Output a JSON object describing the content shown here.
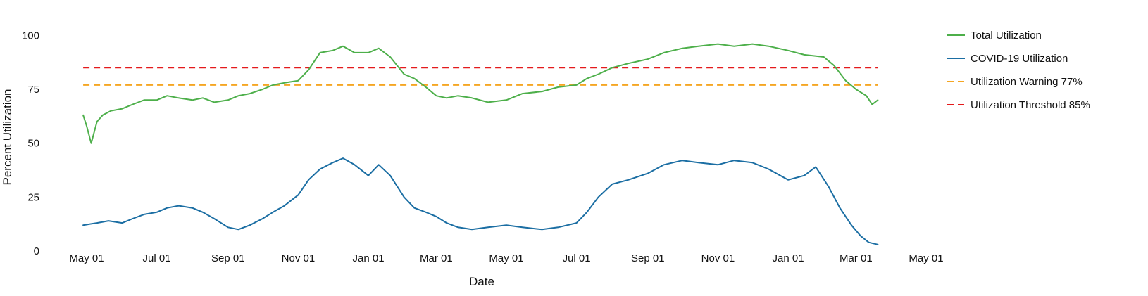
{
  "chart_data": {
    "type": "line",
    "title": "",
    "xlabel": "Date",
    "ylabel": "Percent Utilization",
    "ylim": [
      0,
      105
    ],
    "yticks": [
      0,
      25,
      50,
      75,
      100
    ],
    "xlim": [
      "2020-04-20",
      "2022-05-01"
    ],
    "xticks": [
      {
        "date": "2020-05-01",
        "label": "May 01"
      },
      {
        "date": "2020-07-01",
        "label": "Jul 01"
      },
      {
        "date": "2020-09-01",
        "label": "Sep 01"
      },
      {
        "date": "2020-11-01",
        "label": "Nov 01"
      },
      {
        "date": "2021-01-01",
        "label": "Jan 01"
      },
      {
        "date": "2021-03-01",
        "label": "Mar 01"
      },
      {
        "date": "2021-05-01",
        "label": "May 01"
      },
      {
        "date": "2021-07-01",
        "label": "Jul 01"
      },
      {
        "date": "2021-09-01",
        "label": "Sep 01"
      },
      {
        "date": "2021-11-01",
        "label": "Nov 01"
      },
      {
        "date": "2022-01-01",
        "label": "Jan 01"
      },
      {
        "date": "2022-03-01",
        "label": "Mar 01"
      },
      {
        "date": "2022-05-01",
        "label": "May 01"
      }
    ],
    "grid": false,
    "legend_position": "right",
    "series": [
      {
        "name": "Total Utilization",
        "color": "#4daf4a",
        "style": "solid",
        "x": [
          "2020-04-28",
          "2020-05-01",
          "2020-05-05",
          "2020-05-10",
          "2020-05-15",
          "2020-05-22",
          "2020-06-01",
          "2020-06-10",
          "2020-06-20",
          "2020-07-01",
          "2020-07-10",
          "2020-07-20",
          "2020-08-01",
          "2020-08-10",
          "2020-08-20",
          "2020-09-01",
          "2020-09-10",
          "2020-09-20",
          "2020-10-01",
          "2020-10-10",
          "2020-10-20",
          "2020-11-01",
          "2020-11-10",
          "2020-11-20",
          "2020-12-01",
          "2020-12-10",
          "2020-12-20",
          "2021-01-01",
          "2021-01-10",
          "2021-01-20",
          "2021-02-01",
          "2021-02-10",
          "2021-02-20",
          "2021-03-01",
          "2021-03-10",
          "2021-03-20",
          "2021-04-01",
          "2021-04-15",
          "2021-05-01",
          "2021-05-15",
          "2021-06-01",
          "2021-06-15",
          "2021-07-01",
          "2021-07-10",
          "2021-07-20",
          "2021-08-01",
          "2021-08-15",
          "2021-09-01",
          "2021-09-15",
          "2021-10-01",
          "2021-10-15",
          "2021-11-01",
          "2021-11-15",
          "2021-12-01",
          "2021-12-15",
          "2022-01-01",
          "2022-01-15",
          "2022-02-01",
          "2022-02-10",
          "2022-02-20",
          "2022-03-01",
          "2022-03-10",
          "2022-03-15",
          "2022-03-20"
        ],
        "values": [
          63,
          58,
          50,
          60,
          63,
          65,
          66,
          68,
          70,
          70,
          72,
          71,
          70,
          71,
          69,
          70,
          72,
          73,
          75,
          77,
          78,
          79,
          84,
          92,
          93,
          95,
          92,
          92,
          94,
          90,
          82,
          80,
          76,
          72,
          71,
          72,
          71,
          69,
          70,
          73,
          74,
          76,
          77,
          80,
          82,
          85,
          87,
          89,
          92,
          94,
          95,
          96,
          95,
          96,
          95,
          93,
          91,
          90,
          86,
          79,
          75,
          72,
          68,
          70
        ]
      },
      {
        "name": "COVID-19 Utilization",
        "color": "#1b6ea3",
        "style": "solid",
        "x": [
          "2020-04-28",
          "2020-05-10",
          "2020-05-20",
          "2020-06-01",
          "2020-06-10",
          "2020-06-20",
          "2020-07-01",
          "2020-07-10",
          "2020-07-20",
          "2020-08-01",
          "2020-08-10",
          "2020-08-20",
          "2020-09-01",
          "2020-09-10",
          "2020-09-20",
          "2020-10-01",
          "2020-10-10",
          "2020-10-20",
          "2020-11-01",
          "2020-11-10",
          "2020-11-20",
          "2020-12-01",
          "2020-12-10",
          "2020-12-20",
          "2021-01-01",
          "2021-01-10",
          "2021-01-20",
          "2021-02-01",
          "2021-02-10",
          "2021-02-20",
          "2021-03-01",
          "2021-03-10",
          "2021-03-20",
          "2021-04-01",
          "2021-04-15",
          "2021-05-01",
          "2021-05-15",
          "2021-06-01",
          "2021-06-15",
          "2021-07-01",
          "2021-07-10",
          "2021-07-20",
          "2021-08-01",
          "2021-08-15",
          "2021-09-01",
          "2021-09-15",
          "2021-10-01",
          "2021-10-15",
          "2021-11-01",
          "2021-11-15",
          "2021-12-01",
          "2021-12-15",
          "2022-01-01",
          "2022-01-15",
          "2022-01-25",
          "2022-02-05",
          "2022-02-15",
          "2022-02-25",
          "2022-03-05",
          "2022-03-12",
          "2022-03-20"
        ],
        "values": [
          12,
          13,
          14,
          13,
          15,
          17,
          18,
          20,
          21,
          20,
          18,
          15,
          11,
          10,
          12,
          15,
          18,
          21,
          26,
          33,
          38,
          41,
          43,
          40,
          35,
          40,
          35,
          25,
          20,
          18,
          16,
          13,
          11,
          10,
          11,
          12,
          11,
          10,
          11,
          13,
          18,
          25,
          31,
          33,
          36,
          40,
          42,
          41,
          40,
          42,
          41,
          38,
          33,
          35,
          39,
          30,
          20,
          12,
          7,
          4,
          3
        ]
      },
      {
        "name": "Utilization Warning 77%",
        "color": "#f5a623",
        "style": "dashed",
        "x": [
          "2020-04-28",
          "2022-03-20"
        ],
        "values": [
          77,
          77
        ]
      },
      {
        "name": "Utilization Threshold 85%",
        "color": "#e41a1c",
        "style": "dashed",
        "x": [
          "2020-04-28",
          "2022-03-20"
        ],
        "values": [
          85,
          85
        ]
      }
    ]
  }
}
